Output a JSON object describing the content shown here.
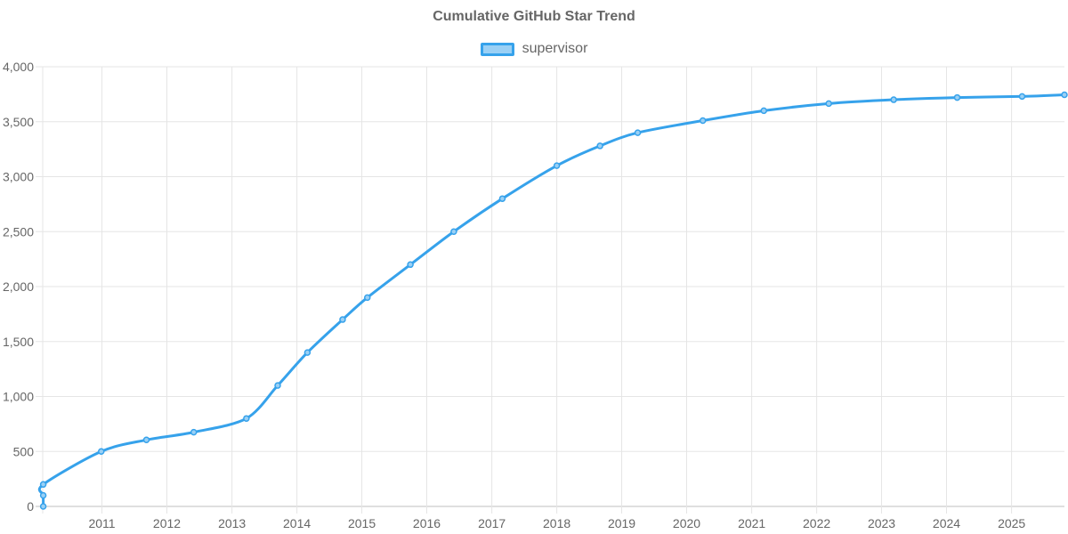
{
  "chart_data": {
    "type": "line",
    "title": "Cumulative GitHub Star Trend",
    "xlabel": "",
    "ylabel": "",
    "x_ticks": [
      "2011",
      "2012",
      "2013",
      "2014",
      "2015",
      "2016",
      "2017",
      "2018",
      "2019",
      "2020",
      "2021",
      "2022",
      "2023",
      "2024",
      "2025"
    ],
    "y_ticks": [
      "0",
      "500",
      "1,000",
      "1,500",
      "2,000",
      "2,500",
      "3,000",
      "3,500",
      "4,000"
    ],
    "ylim": [
      0,
      4000
    ],
    "xlim": [
      "2010-02-02",
      "2025-10-25"
    ],
    "grid": true,
    "legend_position": "top",
    "series": [
      {
        "name": "supervisor",
        "color": "#36a2eb",
        "fill": "#9ad0f5",
        "points": [
          {
            "x": "2010-02-05",
            "y": 0
          },
          {
            "x": "2010-02-05",
            "y": 100
          },
          {
            "x": "2010-02-05",
            "y": 200
          },
          {
            "x": "2010-12-28",
            "y": 500
          },
          {
            "x": "2011-09-08",
            "y": 605
          },
          {
            "x": "2012-05-31",
            "y": 675
          },
          {
            "x": "2013-03-23",
            "y": 800
          },
          {
            "x": "2013-09-15",
            "y": 1100
          },
          {
            "x": "2014-03-01",
            "y": 1400
          },
          {
            "x": "2014-09-15",
            "y": 1700
          },
          {
            "x": "2015-02-01",
            "y": 1900
          },
          {
            "x": "2015-10-01",
            "y": 2200
          },
          {
            "x": "2016-06-01",
            "y": 2500
          },
          {
            "x": "2017-03-01",
            "y": 2800
          },
          {
            "x": "2018-01-01",
            "y": 3100
          },
          {
            "x": "2018-09-01",
            "y": 3280
          },
          {
            "x": "2019-04-01",
            "y": 3400
          },
          {
            "x": "2020-04-01",
            "y": 3510
          },
          {
            "x": "2021-03-10",
            "y": 3600
          },
          {
            "x": "2022-03-10",
            "y": 3665
          },
          {
            "x": "2023-03-10",
            "y": 3700
          },
          {
            "x": "2024-03-01",
            "y": 3720
          },
          {
            "x": "2025-03-01",
            "y": 3730
          },
          {
            "x": "2025-10-25",
            "y": 3745
          }
        ]
      }
    ]
  }
}
